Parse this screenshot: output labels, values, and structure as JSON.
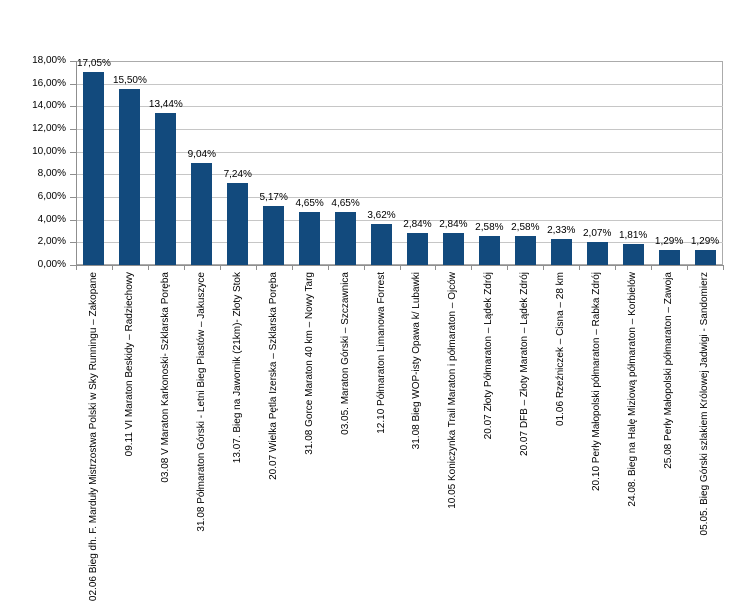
{
  "chart_data": {
    "type": "bar",
    "title": "",
    "xlabel": "",
    "ylabel": "",
    "legend": "none",
    "grid": true,
    "ylim": [
      0,
      18
    ],
    "y_step": 2,
    "y_tick_labels": [
      "18,00%",
      "16,00%",
      "14,00%",
      "12,00%",
      "10,00%",
      "8,00%",
      "6,00%",
      "4,00%",
      "2,00%",
      "0,00%"
    ],
    "categories": [
      "02.06 Bieg dh. F. Marduły Mistrzostwa Polski w Sky Runningu – Zakopane",
      "09.11 VI Maraton Beskidy – Radziechowy",
      "03.08 V Maraton Karkonoski- Szklarska Poręba",
      "31.08 Półmaraton Górski - Letni Bieg Piastów – Jakuszyce",
      "13.07. Bieg na Jawornik (21km)- Złoty Stok",
      "20.07 Wielka Pętla Izerska – Szklarska Poręba",
      "31.08 Gorce Maraton 40 km – Nowy Targ",
      "03.05. Maraton Górski – Szczawnica",
      "12.10 Półmaraton Limanowa Forrest",
      "31.08 Bieg WOP-isty Opawa k/ Lubawki",
      "10.05 Koniczynka Trail Maraton i półmaraton – Ojców",
      "20.07 Złoty Półmaraton – Lądek Zdrój",
      "20.07 DFB – Złoty Maraton – Lądek Zdrój",
      "01.06 Rzeźniczek – Cisna – 28 km",
      "20.10 Perły Małopolski półmaraton – Rabka Zdrój",
      "24.08. Bieg na Halę Miziową półmaraton – Korbielów",
      "25.08 Perły Małopolski półmaraton – Zawoja",
      "05.05. Bieg Górski szlakiem Królowej Jadwigi - Sandomierz"
    ],
    "values": [
      17.05,
      15.5,
      13.44,
      9.04,
      7.24,
      5.17,
      4.65,
      4.65,
      3.62,
      2.84,
      2.84,
      2.58,
      2.58,
      2.33,
      2.07,
      1.81,
      1.29,
      1.29
    ],
    "value_labels": [
      "17,05%",
      "15,50%",
      "13,44%",
      "9,04%",
      "7,24%",
      "5,17%",
      "4,65%",
      "4,65%",
      "3,62%",
      "2,84%",
      "2,84%",
      "2,58%",
      "2,58%",
      "2,33%",
      "2,07%",
      "1,81%",
      "1,29%",
      "1,29%"
    ],
    "colors": {
      "bar": "#124a7d",
      "gridline": "#c6c6c6",
      "plot_border": "#ababab",
      "axis": "#8f8f8f",
      "text": "#000000",
      "background": "#ffffff"
    }
  }
}
